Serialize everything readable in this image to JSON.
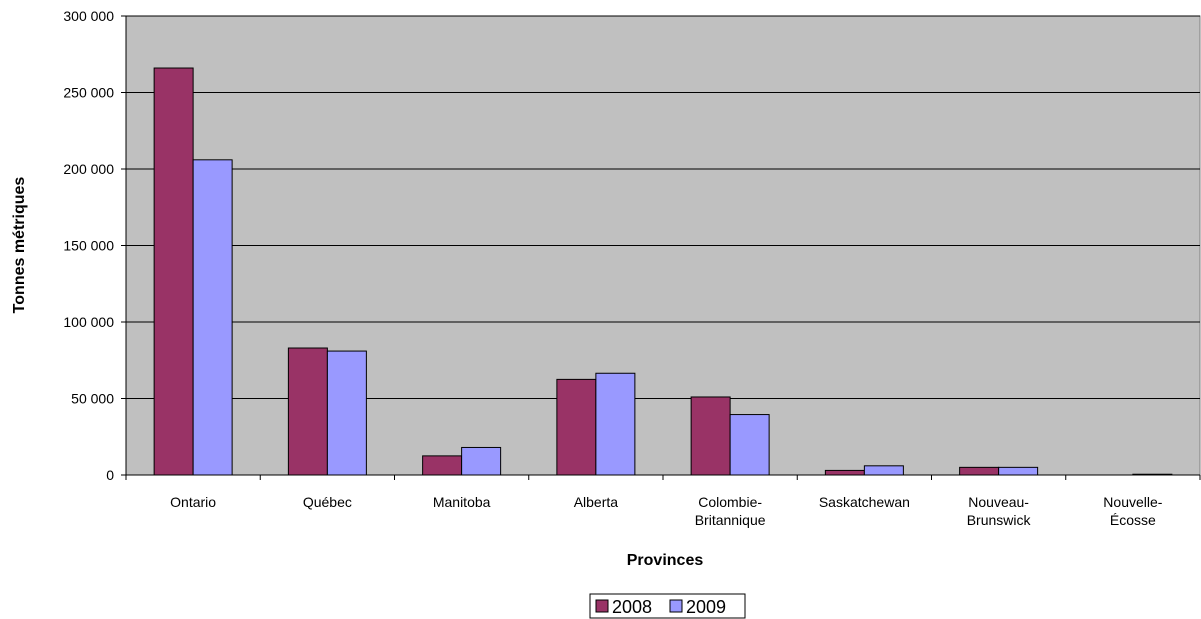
{
  "chart_data": {
    "type": "bar",
    "title": "",
    "xlabel": "Provinces",
    "ylabel": "Tonnes métriques",
    "categories": [
      [
        "Ontario"
      ],
      [
        "Québec"
      ],
      [
        "Manitoba"
      ],
      [
        "Alberta"
      ],
      [
        "Colombie-",
        "Britannique"
      ],
      [
        "Saskatchewan"
      ],
      [
        "Nouveau-",
        "Brunswick"
      ],
      [
        "Nouvelle-",
        "Écosse"
      ]
    ],
    "series": [
      {
        "name": "2008",
        "color": "#993366",
        "values": [
          266000,
          83000,
          12500,
          62500,
          51000,
          3000,
          5000,
          0
        ]
      },
      {
        "name": "2009",
        "color": "#9999ff",
        "values": [
          206000,
          81000,
          18000,
          66500,
          39500,
          6000,
          5000,
          500
        ]
      }
    ],
    "ylim": [
      0,
      300000
    ],
    "yticks": [
      0,
      50000,
      100000,
      150000,
      200000,
      250000,
      300000
    ],
    "ytick_labels": [
      "0",
      "50 000",
      "100 000",
      "150 000",
      "200 000",
      "250 000",
      "300 000"
    ],
    "grid": true,
    "plot_background": "#c0c0c0",
    "legend_position": "bottom"
  }
}
